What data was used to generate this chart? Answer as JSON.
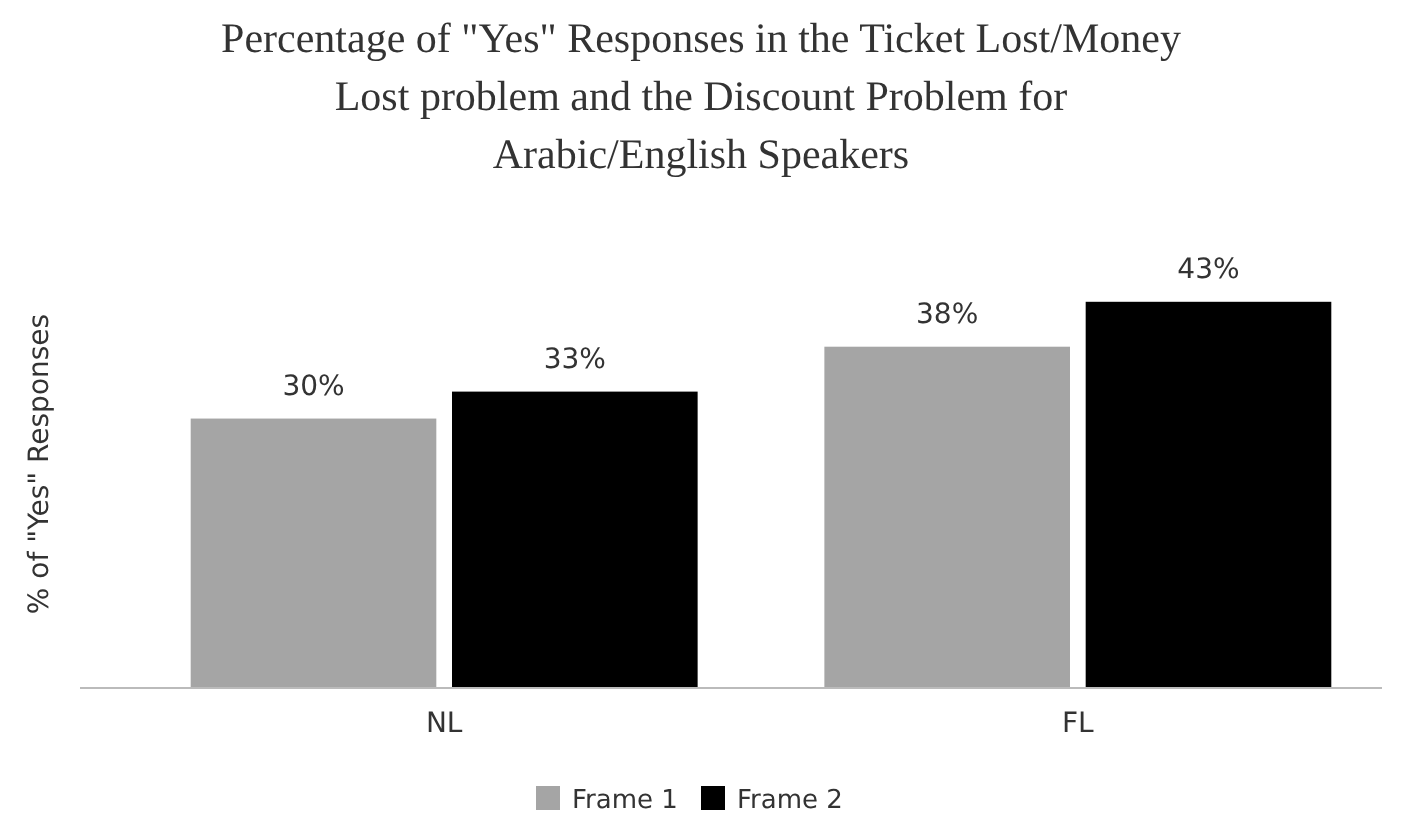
{
  "chart_data": {
    "type": "bar",
    "title": "Percentage of \"Yes\" Responses in the Ticket Lost/Money Lost problem and the Discount Problem for Arabic/English Speakers",
    "ylabel": "% of \"Yes\" Responses",
    "categories": [
      "NL",
      "FL"
    ],
    "series": [
      {
        "name": "Frame 1",
        "color": "#a5a5a5",
        "values": [
          30,
          38
        ],
        "value_labels": [
          "30%",
          "38%"
        ]
      },
      {
        "name": "Frame 2",
        "color": "#000000",
        "values": [
          33,
          43
        ],
        "value_labels": [
          "33%",
          "43%"
        ]
      }
    ],
    "legend": "bottom",
    "grid": false
  }
}
